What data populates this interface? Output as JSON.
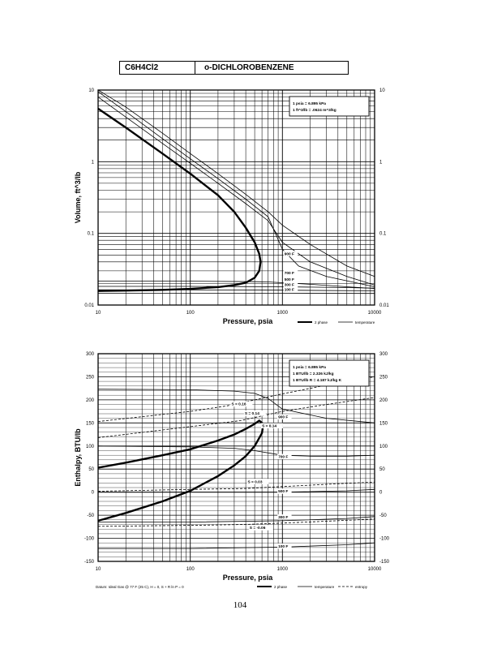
{
  "header": {
    "formula": "C6H4Cl2",
    "name": "o-DICHLOROBENZENE"
  },
  "page_number": "104",
  "chart_data": [
    {
      "type": "line",
      "xscale": "log",
      "yscale": "log",
      "xlim": [
        10,
        10000
      ],
      "ylim": [
        0.01,
        10
      ],
      "xlabel": "Pressure,  psia",
      "ylabel": "Volume, ft^3/lb",
      "x_ticks": [
        "10",
        "100",
        "1000",
        "10000"
      ],
      "y_ticks": [
        "0.01",
        "0.1",
        "1",
        "10"
      ],
      "grid": true,
      "note_lines": [
        "1 psia  =  6.895 kPa",
        "1 ft^3/lb  =  .0624 m^3/kg"
      ],
      "legend_items": [
        {
          "label": "2 phase",
          "style": "thick"
        },
        {
          "label": "temperature",
          "style": "thin"
        }
      ],
      "series": [
        {
          "role": "dome",
          "x": [
            10,
            20,
            50,
            100,
            200,
            300,
            400,
            500,
            560,
            580,
            560,
            500,
            400,
            300,
            200,
            100,
            50,
            20,
            10
          ],
          "y": [
            5.5,
            3.0,
            1.3,
            0.68,
            0.34,
            0.2,
            0.12,
            0.075,
            0.052,
            0.04,
            0.03,
            0.024,
            0.0205,
            0.019,
            0.0178,
            0.0168,
            0.0163,
            0.0159,
            0.0157
          ]
        },
        {
          "role": "isotherm",
          "x": [
            10,
            20,
            50,
            100,
            200,
            400,
            700,
            1000,
            2000,
            5000,
            10000
          ],
          "y": [
            8.0,
            4.2,
            1.8,
            0.95,
            0.5,
            0.26,
            0.15,
            0.075,
            0.04,
            0.025,
            0.019
          ]
        },
        {
          "role": "isotherm",
          "x": [
            10,
            20,
            50,
            100,
            200,
            400,
            700,
            1000,
            1500,
            3000,
            10000
          ],
          "y": [
            9.5,
            5.0,
            2.1,
            1.1,
            0.58,
            0.3,
            0.17,
            0.06,
            0.035,
            0.025,
            0.018
          ]
        },
        {
          "role": "isotherm",
          "label": "900 F",
          "x": [
            10,
            20,
            50,
            100,
            200,
            400,
            700,
            1000,
            2000,
            5000,
            10000
          ],
          "y": [
            10.0,
            5.8,
            2.5,
            1.3,
            0.68,
            0.35,
            0.2,
            0.13,
            0.07,
            0.035,
            0.025
          ]
        },
        {
          "role": "isotherm",
          "label": "700 F",
          "x": [
            10,
            100,
            500,
            700,
            1000,
            2000,
            5000,
            10000
          ],
          "y": [
            0.0215,
            0.0215,
            0.0212,
            0.021,
            0.0205,
            0.0195,
            0.018,
            0.017
          ]
        },
        {
          "role": "isotherm",
          "label": "500 F",
          "x": [
            10,
            100,
            1000,
            5000,
            10000
          ],
          "y": [
            0.0182,
            0.0182,
            0.018,
            0.0175,
            0.0172
          ]
        },
        {
          "role": "isotherm",
          "label": "300 F",
          "x": [
            10,
            100,
            1000,
            10000
          ],
          "y": [
            0.0163,
            0.0163,
            0.0161,
            0.0158
          ]
        },
        {
          "role": "isotherm",
          "label": "100 F",
          "x": [
            10,
            100,
            1000,
            10000
          ],
          "y": [
            0.0146,
            0.0146,
            0.0146,
            0.0145
          ]
        }
      ],
      "curve_labels": [
        {
          "text": "900 F",
          "x": 1050,
          "y": 0.05
        },
        {
          "text": "700 F",
          "x": 1050,
          "y": 0.027
        },
        {
          "text": "500 F",
          "x": 1050,
          "y": 0.022
        },
        {
          "text": "300 F",
          "x": 1050,
          "y": 0.0185
        },
        {
          "text": "100 F",
          "x": 1050,
          "y": 0.0158
        }
      ]
    },
    {
      "type": "line",
      "xscale": "log",
      "xlim": [
        10,
        10000
      ],
      "ylim": [
        -150,
        300
      ],
      "xlabel": "Pressure,  psia",
      "ylabel": "Enthalpy, BTU/lb",
      "x_ticks": [
        "10",
        "100",
        "1000",
        "10000"
      ],
      "y_ticks": [
        "-150",
        "-100",
        "-50",
        "0",
        "50",
        "100",
        "150",
        "200",
        "250",
        "300"
      ],
      "grid": true,
      "note_lines": [
        "1 psia  =  6.895 kPa",
        "1 BTU/lb  =  2.326 kJ/kg",
        "1 BTU/lb R  =  4.187 kJ/kg K"
      ],
      "footnote": "Datum: Ideal Gas @ 77 F (25 C),  H = 0,  S + R ln P = 0",
      "legend_items": [
        {
          "label": "2 phase",
          "style": "thick"
        },
        {
          "label": "temperature",
          "style": "thin"
        },
        {
          "label": "entropy",
          "style": "dashed"
        }
      ],
      "series": [
        {
          "role": "dome",
          "x": [
            10,
            20,
            50,
            100,
            200,
            300,
            400,
            500,
            560,
            620,
            600,
            500,
            400,
            300,
            200,
            100,
            50,
            20,
            10
          ],
          "y": [
            53,
            64,
            80,
            93,
            112,
            125,
            137,
            148,
            155,
            148,
            128,
            100,
            78,
            58,
            35,
            3,
            -20,
            -45,
            -62
          ]
        },
        {
          "role": "isotherm",
          "label": "900 F",
          "x": [
            10,
            100,
            300,
            500,
            700,
            1000,
            3000,
            10000
          ],
          "y": [
            223,
            222,
            219,
            214,
            203,
            180,
            160,
            150
          ]
        },
        {
          "role": "isotherm",
          "label": "700 F",
          "x": [
            10,
            100,
            300,
            500,
            1000,
            2000,
            5000,
            10000
          ],
          "y": [
            100,
            98,
            95,
            90,
            80,
            78,
            78,
            80
          ]
        },
        {
          "role": "isotherm",
          "label": "500 F",
          "x": [
            10,
            100,
            1000,
            5000,
            10000
          ],
          "y": [
            0,
            0,
            0,
            3,
            6
          ]
        },
        {
          "role": "isotherm",
          "label": "300 F",
          "x": [
            10,
            100,
            1000,
            5000,
            10000
          ],
          "y": [
            -65,
            -65,
            -62,
            -57,
            -53
          ]
        },
        {
          "role": "isotherm",
          "label": "100 F",
          "x": [
            10,
            100,
            1000,
            5000,
            10000
          ],
          "y": [
            -122,
            -122,
            -119,
            -114,
            -110
          ]
        },
        {
          "role": "entropy",
          "label": "S = 0.16",
          "x": [
            10,
            100,
            250,
            1000,
            3000,
            10000
          ],
          "y": [
            153,
            175,
            187,
            213,
            232,
            250
          ]
        },
        {
          "role": "entropy",
          "label": "S = 0.14",
          "x": [
            10,
            100,
            350,
            1000,
            3000,
            10000
          ],
          "y": [
            118,
            142,
            155,
            175,
            190,
            205
          ]
        },
        {
          "role": "entropy",
          "label": "S = 0.03",
          "x": [
            10,
            100,
            400,
            1000,
            3000,
            10000
          ],
          "y": [
            2,
            6,
            8,
            12,
            17,
            22
          ]
        },
        {
          "role": "entropy",
          "label": "S = -0.06",
          "x": [
            10,
            100,
            400,
            1000,
            3000,
            10000
          ],
          "y": [
            -74,
            -72,
            -70,
            -67,
            -63,
            -58
          ]
        }
      ],
      "curve_labels": [
        {
          "text": "S = 0.16",
          "x": 280,
          "y": 188
        },
        {
          "text": "S = 0.14",
          "x": 390,
          "y": 168
        },
        {
          "text": "S = 0.14",
          "x": 600,
          "y": 141
        },
        {
          "text": "900 F",
          "x": 900,
          "y": 160
        },
        {
          "text": "700 F",
          "x": 900,
          "y": 74
        },
        {
          "text": "S = 0.03",
          "x": 420,
          "y": 20
        },
        {
          "text": "500 F",
          "x": 900,
          "y": -1
        },
        {
          "text": "300 F",
          "x": 900,
          "y": -57
        },
        {
          "text": "S = -0.06",
          "x": 440,
          "y": -80
        },
        {
          "text": "100 F",
          "x": 900,
          "y": -120
        }
      ]
    }
  ]
}
